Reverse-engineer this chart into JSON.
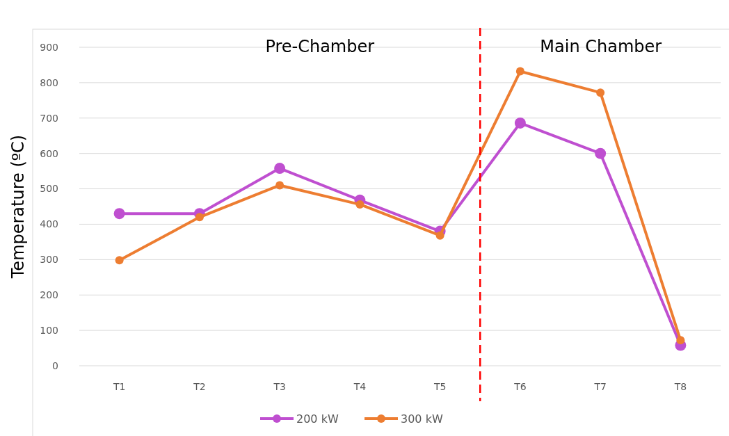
{
  "chart_data": {
    "type": "line",
    "ylabel": "Temperature (ºC)",
    "categories": [
      "T1",
      "T2",
      "T3",
      "T4",
      "T5",
      "T6",
      "T7",
      "T8"
    ],
    "series": [
      {
        "name": "200 kW",
        "color": "#bf4fd0",
        "values": [
          430,
          430,
          558,
          468,
          380,
          686,
          600,
          58
        ]
      },
      {
        "name": "300 kW",
        "color": "#ed7d31",
        "values": [
          298,
          420,
          510,
          456,
          368,
          832,
          772,
          72
        ]
      }
    ],
    "ylim": [
      0,
      900
    ],
    "yticks": [
      0,
      100,
      200,
      300,
      400,
      500,
      600,
      700,
      800,
      900
    ],
    "grid": "y",
    "legend": "bottom",
    "marker": "circle",
    "annotations": [
      "Pre-Chamber",
      "Main Chamber"
    ]
  }
}
